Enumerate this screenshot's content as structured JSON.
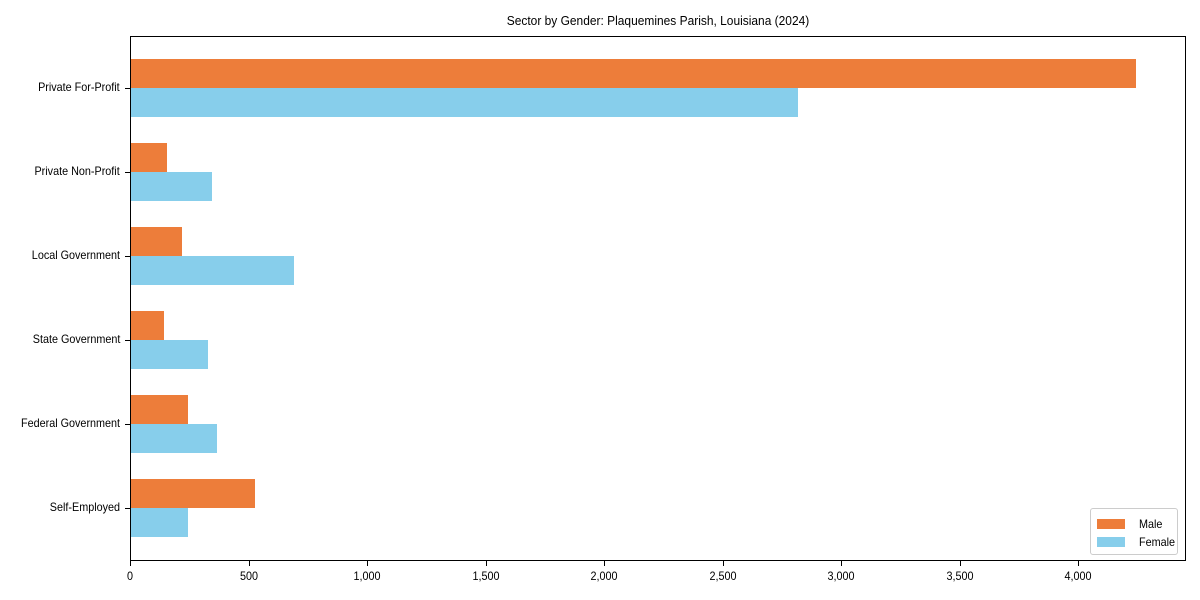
{
  "chart_data": {
    "type": "bar",
    "orientation": "horizontal",
    "title": "Sector by Gender: Plaquemines Parish, Louisiana (2024)",
    "xlabel": "",
    "ylabel": "",
    "categories": [
      "Private For-Profit",
      "Private Non-Profit",
      "Local Government",
      "State Government",
      "Federal Government",
      "Self-Employed"
    ],
    "series": [
      {
        "name": "Male",
        "color": "#ED7D3A",
        "values": [
          4241,
          152,
          215,
          139,
          240,
          523
        ]
      },
      {
        "name": "Female",
        "color": "#87CEEB",
        "values": [
          2814,
          342,
          688,
          325,
          363,
          240
        ]
      }
    ],
    "xlim": [
      0,
      4455
    ],
    "xticks": [
      0,
      500,
      1000,
      1500,
      2000,
      2500,
      3000,
      3500,
      4000
    ],
    "xtick_labels": [
      "0",
      "500",
      "1,000",
      "1,500",
      "2,000",
      "2,500",
      "3,000",
      "3,500",
      "4,000"
    ],
    "grid": false,
    "legend_position": "lower right"
  }
}
